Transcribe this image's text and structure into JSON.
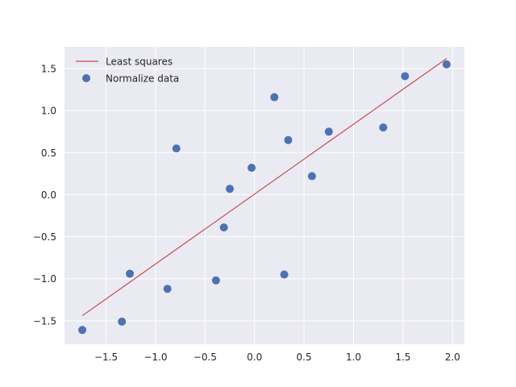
{
  "chart_data": {
    "type": "scatter",
    "title": "",
    "xlabel": "",
    "ylabel": "",
    "xlim": [
      -1.92,
      2.12
    ],
    "ylim": [
      -1.78,
      1.76
    ],
    "x_ticks": [
      -1.5,
      -1.0,
      -0.5,
      0.0,
      0.5,
      1.0,
      1.5,
      2.0
    ],
    "x_tick_labels": [
      "−1.5",
      "−1.0",
      "−0.5",
      "0.0",
      "0.5",
      "1.0",
      "1.5",
      "2.0"
    ],
    "y_ticks": [
      -1.5,
      -1.0,
      -0.5,
      0.0,
      0.5,
      1.0,
      1.5
    ],
    "y_tick_labels": [
      "−1.5",
      "−1.0",
      "−0.5",
      "0.0",
      "0.5",
      "1.0",
      "1.5"
    ],
    "grid": true,
    "legend_position": "top-left",
    "series": [
      {
        "name": "Least squares",
        "type": "line",
        "color": "#c44e52",
        "x": [
          -1.74,
          1.94
        ],
        "y": [
          -1.44,
          1.62
        ]
      },
      {
        "name": "Normalize data",
        "type": "scatter",
        "color": "#4c72b0",
        "x": [
          -1.74,
          -1.34,
          -1.26,
          -0.88,
          -0.79,
          -0.39,
          -0.31,
          -0.25,
          -0.03,
          0.2,
          0.3,
          0.34,
          0.58,
          0.75,
          1.3,
          1.52,
          1.94
        ],
        "y": [
          -1.61,
          -1.51,
          -0.94,
          -1.12,
          0.55,
          -1.02,
          -0.39,
          0.07,
          0.32,
          1.16,
          -0.95,
          0.65,
          0.22,
          0.75,
          0.8,
          1.41,
          1.55
        ]
      }
    ]
  },
  "legend": {
    "line_label": "Least squares",
    "scatter_label": "Normalize data"
  },
  "colors": {
    "plot_background": "#eaeaf2",
    "grid": "#ffffff",
    "line": "#c44e52",
    "points": "#4c72b0"
  }
}
